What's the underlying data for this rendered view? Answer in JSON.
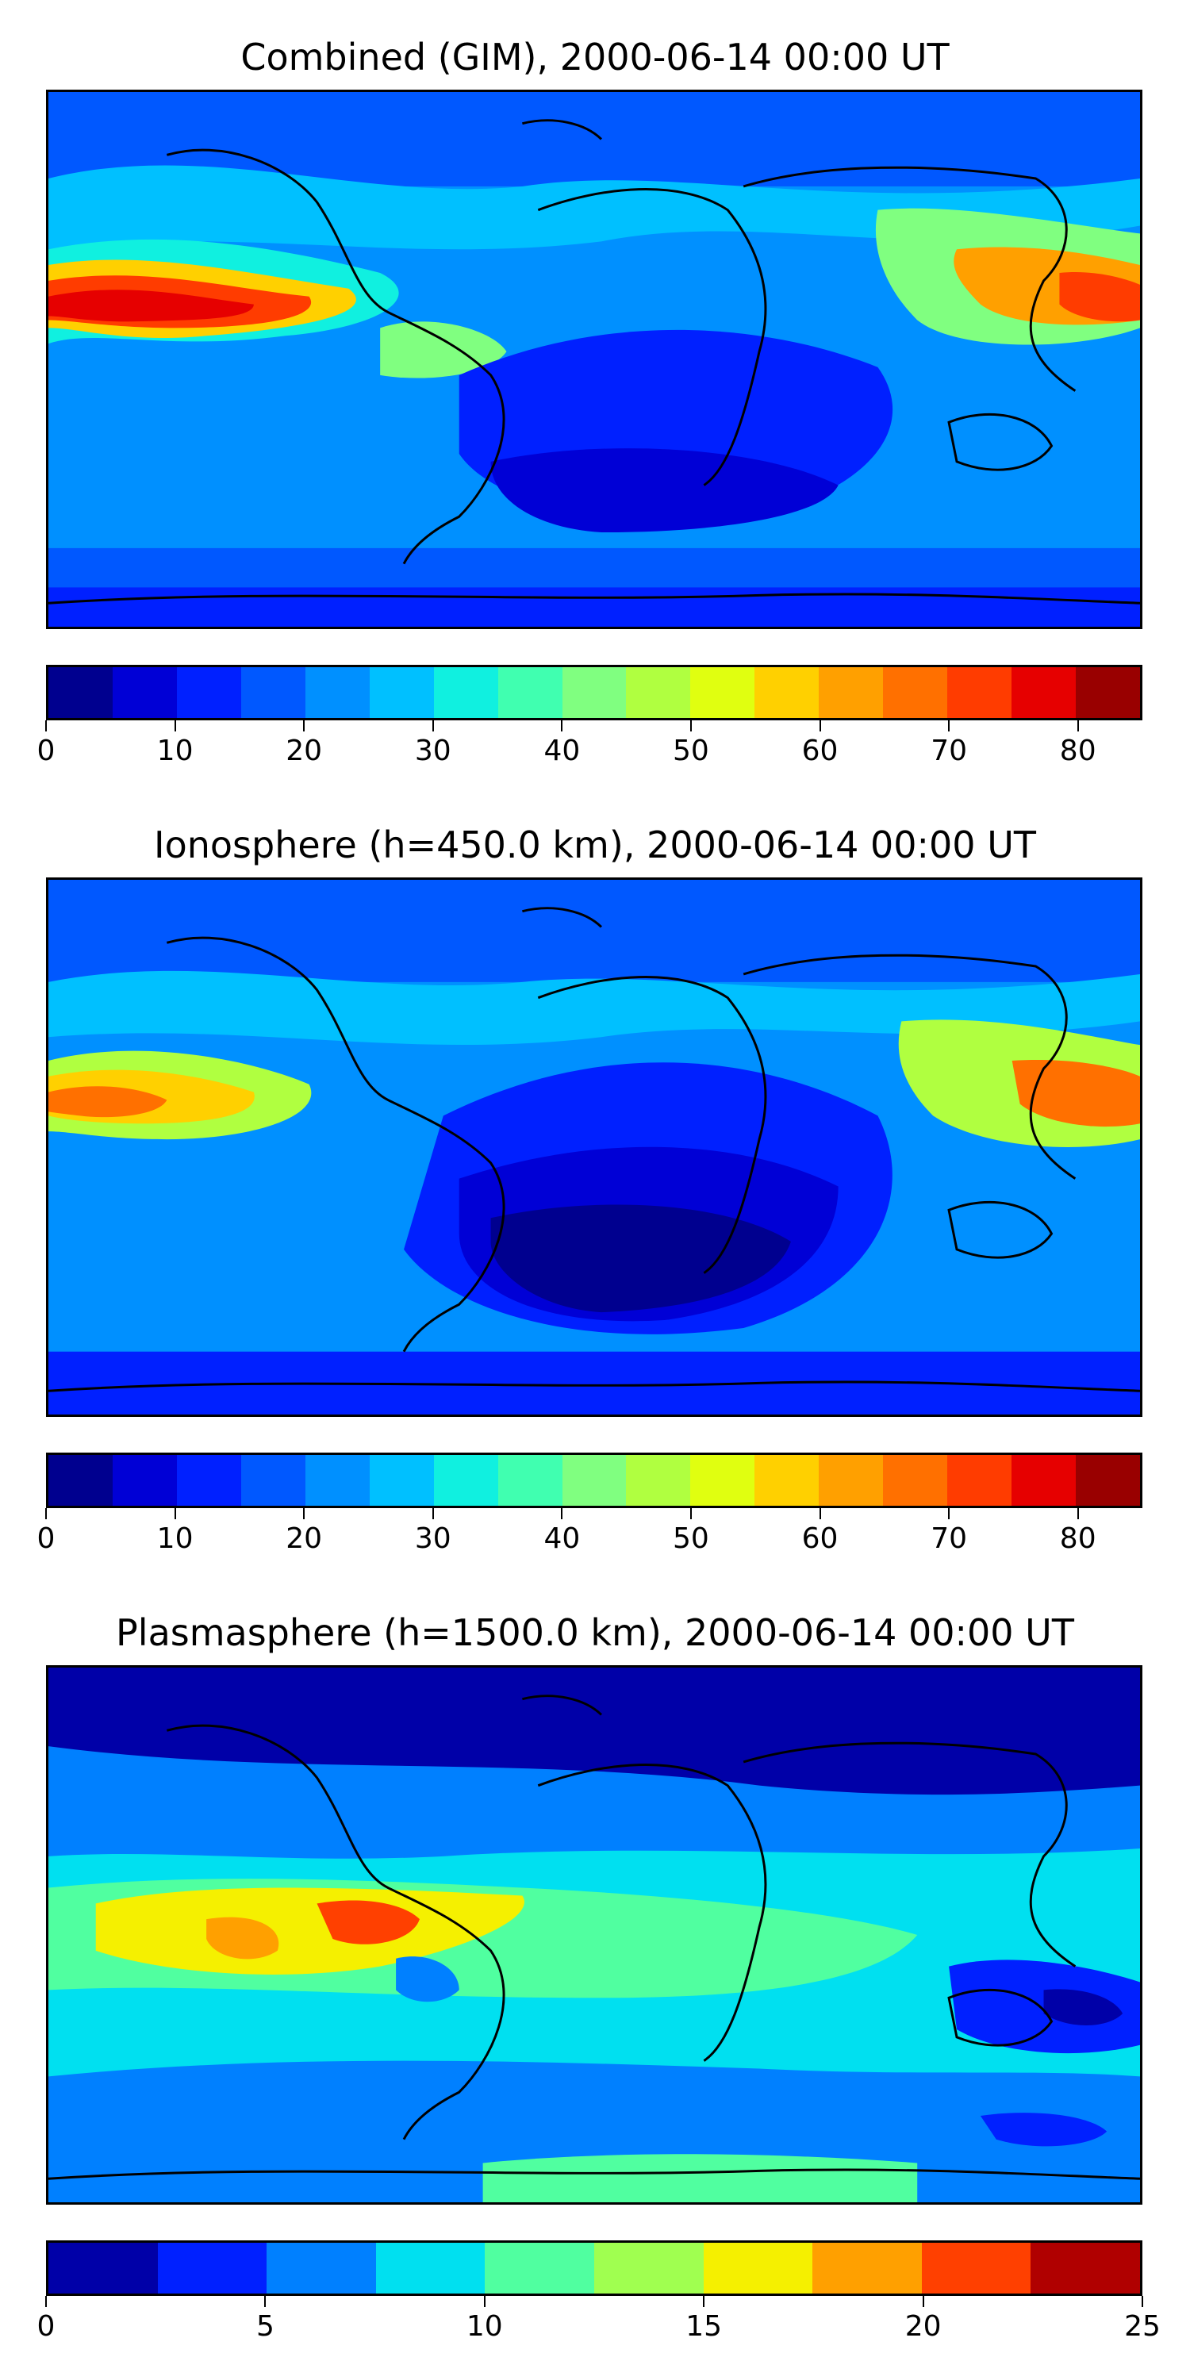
{
  "panels": [
    {
      "title": "Combined (GIM), 2000-06-14 00:00 UT",
      "colorbar": {
        "vmin": 0,
        "vmax": 85,
        "colors": [
          "#00008f",
          "#0000d6",
          "#0020ff",
          "#0058ff",
          "#0090ff",
          "#00c0ff",
          "#10f0e0",
          "#40ffb0",
          "#80ff80",
          "#b0ff40",
          "#e0ff10",
          "#ffd000",
          "#ffa000",
          "#ff7000",
          "#ff3c00",
          "#e60000",
          "#990000"
        ],
        "ticks": [
          "0",
          "10",
          "20",
          "30",
          "40",
          "50",
          "60",
          "70",
          "80"
        ]
      },
      "field": "combined"
    },
    {
      "title": "Ionosphere  (h=450.0 km), 2000-06-14 00:00 UT",
      "colorbar": {
        "vmin": 0,
        "vmax": 85,
        "colors": [
          "#00008f",
          "#0000d6",
          "#0020ff",
          "#0058ff",
          "#0090ff",
          "#00c0ff",
          "#10f0e0",
          "#40ffb0",
          "#80ff80",
          "#b0ff40",
          "#e0ff10",
          "#ffd000",
          "#ffa000",
          "#ff7000",
          "#ff3c00",
          "#e60000",
          "#990000"
        ],
        "ticks": [
          "0",
          "10",
          "20",
          "30",
          "40",
          "50",
          "60",
          "70",
          "80"
        ]
      },
      "field": "ionosphere"
    },
    {
      "title": "Plasmasphere (h=1500.0 km), 2000-06-14 00:00 UT",
      "colorbar": {
        "vmin": 0,
        "vmax": 25,
        "colors": [
          "#0000a8",
          "#0020ff",
          "#0080ff",
          "#00e0f0",
          "#50ffa0",
          "#a0ff50",
          "#f5f000",
          "#ffa000",
          "#ff4000",
          "#b00000"
        ],
        "ticks": [
          "0",
          "5",
          "10",
          "15",
          "20",
          "25"
        ]
      },
      "field": "plasmasphere"
    }
  ]
}
